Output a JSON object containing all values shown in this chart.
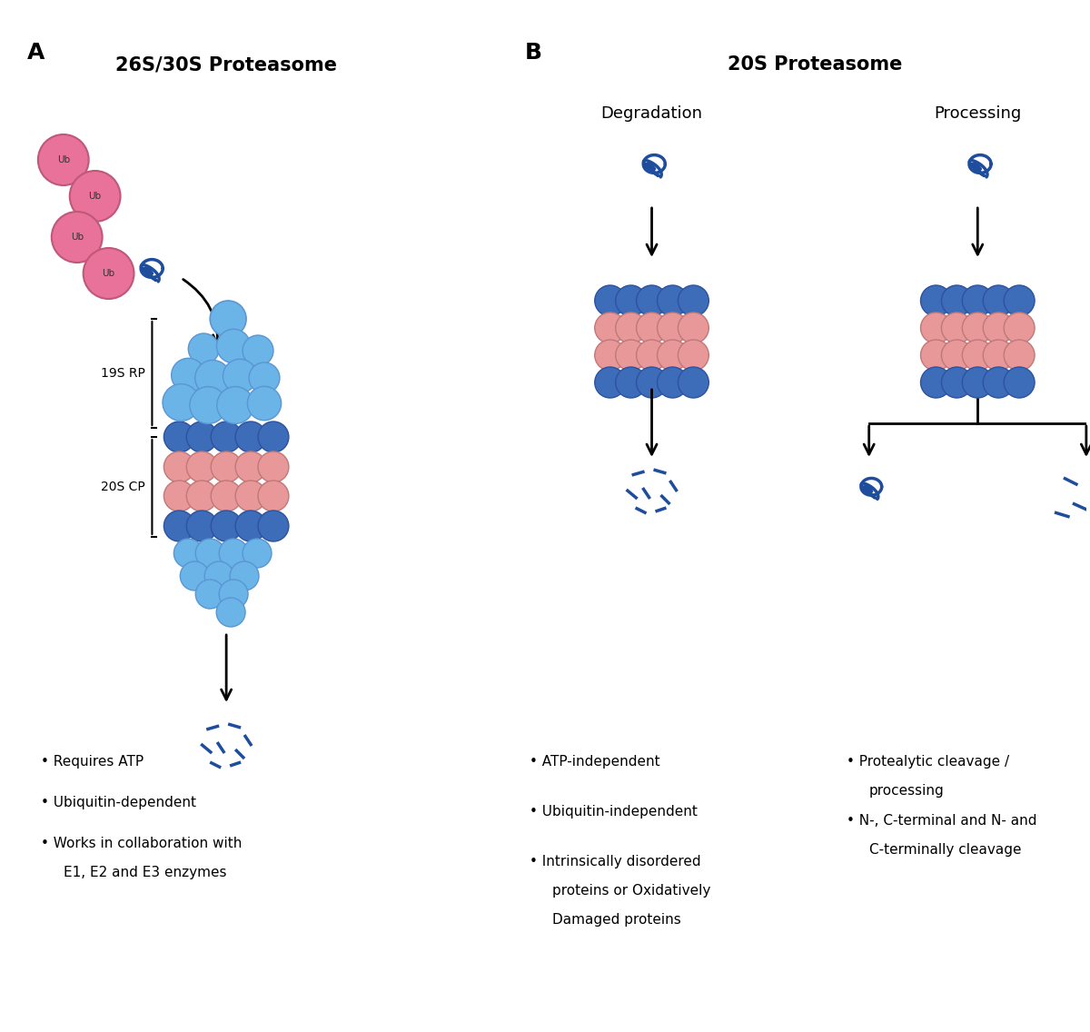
{
  "bg_color": "#ffffff",
  "panel_A_title": "26S/30S Proteasome",
  "panel_B_title": "20S Proteasome",
  "degradation_label": "Degradation",
  "processing_label": "Processing",
  "label_19S": "19S RP",
  "label_20S": "20S CP",
  "label_A": "A",
  "label_B": "B",
  "ub_color": "#e8729a",
  "ub_stroke": "#c05878",
  "light_blue": "#6ab4e8",
  "medium_blue": "#5a96d4",
  "dark_blue": "#3d6db8",
  "deeper_blue": "#2d52a0",
  "salmon": "#e89898",
  "protein_blue": "#1e4d9e",
  "bullet_text_A": [
    "Requires ATP",
    "Ubiquitin-dependent",
    "Works in collaboration with\nE1, E2 and E3 enzymes"
  ],
  "bullet_text_B_deg": [
    "ATP-independent",
    "Ubiquitin-independent",
    "Intrinsically disordered\nproteins or Oxidatively\nDamaged proteins"
  ],
  "bullet_text_B_proc": [
    "Protealytic cleavage /\nprocessing",
    "N-, C-terminal and N- and\nC-terminally cleavage"
  ]
}
